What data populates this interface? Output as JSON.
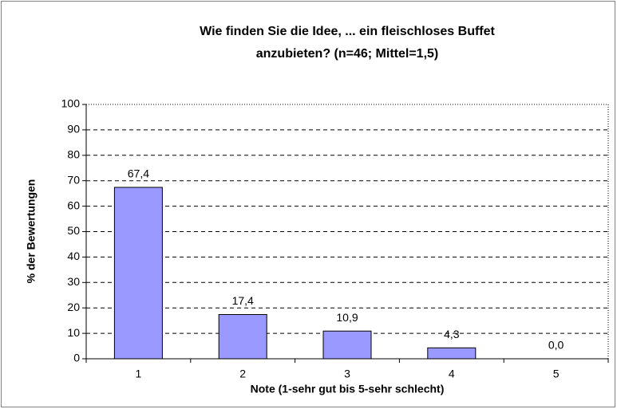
{
  "chart_data": {
    "type": "bar",
    "title": [
      "Wie finden Sie die Idee, ... ein fleischloses Buffet",
      "anzubieten? (n=46; Mittel=1,5)"
    ],
    "x_label": "Note (1-sehr gut bis 5-sehr schlecht)",
    "y_label": "% der Bewertungen",
    "categories": [
      "1",
      "2",
      "3",
      "4",
      "5"
    ],
    "values": [
      67.4,
      17.4,
      10.9,
      4.3,
      0.0
    ],
    "value_labels": [
      "67,4",
      "17,4",
      "10,9",
      "4,3",
      "0,0"
    ],
    "color": "#9999ff",
    "ylim": [
      0,
      100
    ],
    "yticks": [
      0,
      10,
      20,
      30,
      40,
      50,
      60,
      70,
      80,
      90,
      100
    ],
    "grid": true
  }
}
